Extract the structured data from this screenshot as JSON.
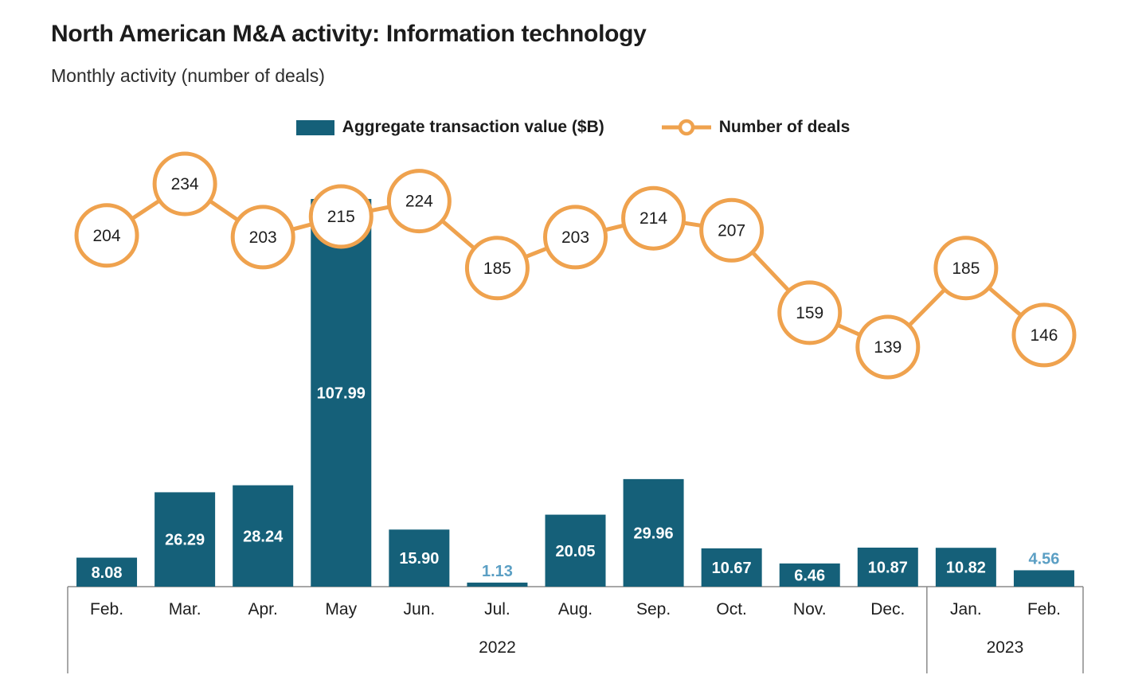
{
  "header": {
    "title": "North American M&A activity: Information technology",
    "subtitle": "Monthly activity (number of deals)"
  },
  "legend": {
    "bars_label": "Aggregate transaction value ($B)",
    "line_label": "Number of deals"
  },
  "colors": {
    "bar": "#156079",
    "line": "#efa24e",
    "marker_fill": "#ffffff",
    "bar_label_inside": "#ffffff",
    "bar_label_outside": "#5b9fc4",
    "axis": "#8a8a8a",
    "text": "#1e1e1e"
  },
  "chart_data": {
    "type": "combo-bar-line",
    "title": "North American M&A activity: Information technology",
    "subtitle": "Monthly activity (number of deals)",
    "categories": [
      "Feb.",
      "Mar.",
      "Apr.",
      "May",
      "Jun.",
      "Jul.",
      "Aug.",
      "Sep.",
      "Oct.",
      "Nov.",
      "Dec.",
      "Jan.",
      "Feb."
    ],
    "year_groups": [
      {
        "label": "2022",
        "start": 0,
        "end": 10
      },
      {
        "label": "2023",
        "start": 11,
        "end": 12
      }
    ],
    "series": [
      {
        "name": "Aggregate transaction value ($B)",
        "type": "bar",
        "values": [
          8.08,
          26.29,
          28.24,
          107.99,
          15.9,
          1.13,
          20.05,
          29.96,
          10.67,
          6.46,
          10.87,
          10.82,
          4.56
        ]
      },
      {
        "name": "Number of deals",
        "type": "line",
        "values": [
          204,
          234,
          203,
          215,
          224,
          185,
          203,
          214,
          207,
          159,
          139,
          185,
          146
        ]
      }
    ],
    "legend_position": "top-center",
    "grid": false
  }
}
